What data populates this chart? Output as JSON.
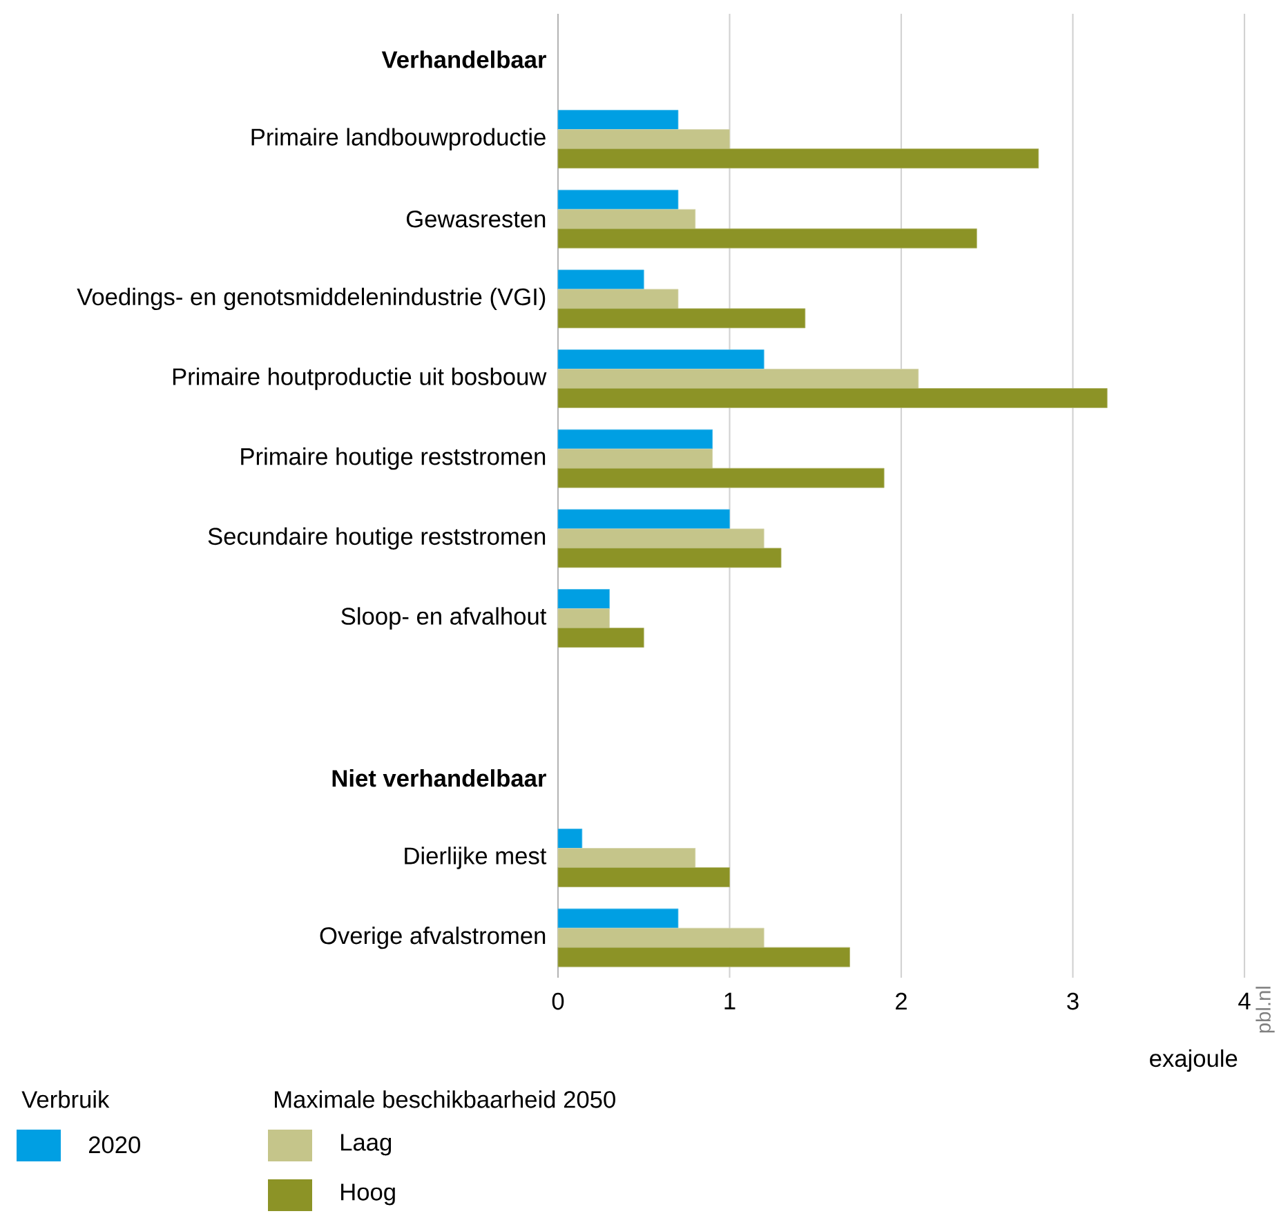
{
  "chart_data": {
    "type": "bar",
    "orientation": "horizontal",
    "xlabel": "exajoule",
    "categories": [
      "Verhandelbaar",
      "Primaire landbouwproductie",
      "Gewasresten",
      "Voedings- en genotsmiddelenindustrie (VGI)",
      "Primaire houtproductie uit bosbouw",
      "Primaire houtige reststromen",
      "Secundaire houtige reststromen",
      "Sloop- en afvalhout",
      null,
      "Niet verhandelbaar",
      "Dierlijke mest",
      "Overige afvalstromen"
    ],
    "series": [
      {
        "name": "2020",
        "color": "#009fe3",
        "values": [
          null,
          0.7,
          0.7,
          0.5,
          1.2,
          0.9,
          1.0,
          0.3,
          null,
          null,
          0.14,
          0.7
        ]
      },
      {
        "name": "Laag",
        "color": "#c5c58a",
        "values": [
          null,
          1.0,
          0.8,
          0.7,
          2.1,
          0.9,
          1.2,
          0.3,
          null,
          null,
          0.8,
          1.2
        ]
      },
      {
        "name": "Hoog",
        "color": "#8c9326",
        "values": [
          null,
          2.8,
          2.44,
          1.44,
          3.2,
          1.9,
          1.3,
          0.5,
          null,
          null,
          1.0,
          1.7
        ]
      }
    ],
    "xlim": [
      0,
      4
    ],
    "xticks": [
      0,
      1,
      2,
      3,
      4
    ],
    "grid": "x",
    "legend": "bottom left",
    "annotations": [
      "Verbruik",
      "Maximale beschikbaarheid 2050",
      "pbl.nl"
    ]
  }
}
